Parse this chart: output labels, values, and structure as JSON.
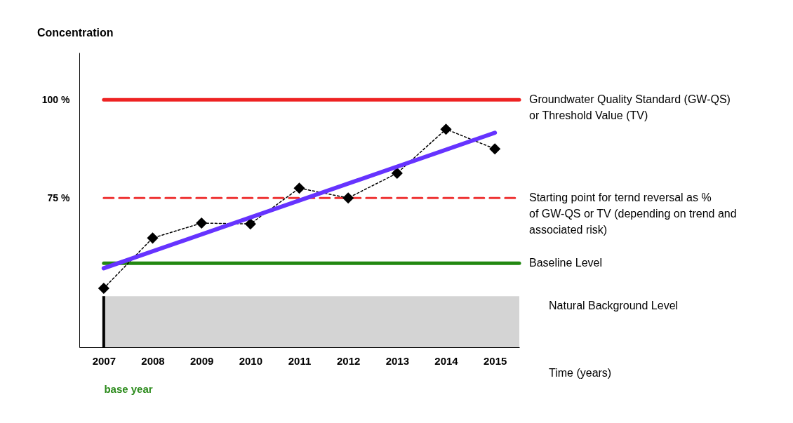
{
  "chart_data": {
    "type": "line",
    "ylabel": "Concentration",
    "xlabel": "Time (years)",
    "x": [
      2007,
      2008,
      2009,
      2010,
      2011,
      2012,
      2013,
      2014,
      2015
    ],
    "xlim": [
      2006.5,
      2015.5
    ],
    "xticks": [
      2007,
      2008,
      2009,
      2010,
      2011,
      2012,
      2013,
      2014,
      2015
    ],
    "ylim": [
      37,
      112
    ],
    "yticks": [
      {
        "value": 75,
        "label": "75 %"
      },
      {
        "value": 100,
        "label": "100 %"
      }
    ],
    "series": [
      {
        "color": "#000000",
        "marker": "diamond",
        "line_style": "dotted",
        "values": [
          52,
          64.8,
          68.6,
          68.4,
          77.5,
          75,
          81.3,
          92.5,
          87.5
        ]
      },
      {
        "type": "line",
        "color": "#6633ff",
        "marker": "none",
        "line_style": "solid",
        "x": [
          2007,
          2015
        ],
        "values": [
          57.1,
          91.6
        ]
      }
    ],
    "ref_lines": [
      {
        "axis": "y",
        "value": 100,
        "label": "Groundwater Quality Standard (GW-QS) or Threshold Value (TV)",
        "color": "#ee2222",
        "line_style": "solid"
      },
      {
        "axis": "y",
        "value": 75,
        "label": "Starting point for ternd reversal as % of GW-QS or TV (depending on trend and associated risk)",
        "color": "#ee3333",
        "line_style": "dashed"
      },
      {
        "axis": "y",
        "value": 58.4,
        "label": "Baseline Level",
        "color": "#228811",
        "line_style": "solid"
      },
      {
        "axis": "x",
        "value": 2007,
        "color": "#000000",
        "line_style": "solid"
      }
    ],
    "bands": [
      {
        "axis": "y",
        "from": 37,
        "to": 50,
        "label": "Natural Background Level",
        "color": "#d4d4d4"
      }
    ],
    "annotations": [
      "base year"
    ],
    "grid": false
  }
}
